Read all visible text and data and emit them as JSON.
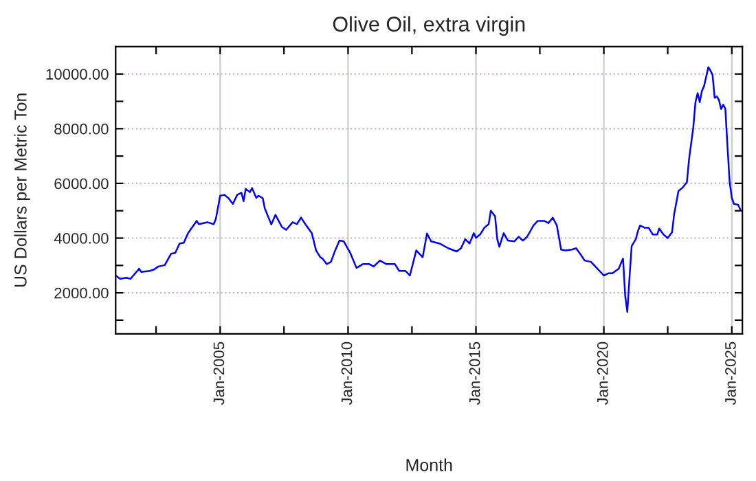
{
  "chart_data": {
    "type": "line",
    "title": "Olive Oil, extra virgin",
    "xlabel": "Month",
    "ylabel": "US Dollars per Metric Ton",
    "x": [
      "2000-12",
      "2001-02",
      "2001-05",
      "2001-07",
      "2001-11",
      "2001-12",
      "2002-04",
      "2002-06",
      "2002-08",
      "2002-11",
      "2003-02",
      "2003-04",
      "2003-06",
      "2003-08",
      "2003-10",
      "2004-02",
      "2004-03",
      "2004-07",
      "2004-10",
      "2004-11",
      "2005-01",
      "2005-03",
      "2005-05",
      "2005-07",
      "2005-09",
      "2005-11",
      "2005-12",
      "2006-01",
      "2006-03",
      "2006-04",
      "2006-06",
      "2006-07",
      "2006-09",
      "2006-10",
      "2007-01",
      "2007-03",
      "2007-06",
      "2007-08",
      "2007-11",
      "2008-01",
      "2008-03",
      "2008-05",
      "2008-08",
      "2008-10",
      "2008-12",
      "2009-01",
      "2009-03",
      "2009-05",
      "2009-07",
      "2009-09",
      "2009-11",
      "2010-02",
      "2010-05",
      "2010-08",
      "2010-11",
      "2011-01",
      "2011-04",
      "2011-07",
      "2011-11",
      "2012-01",
      "2012-04",
      "2012-06",
      "2012-09",
      "2012-12",
      "2013-02",
      "2013-04",
      "2013-08",
      "2013-12",
      "2014-04",
      "2014-06",
      "2014-08",
      "2014-10",
      "2014-12",
      "2015-01",
      "2015-03",
      "2015-05",
      "2015-07",
      "2015-08",
      "2015-10",
      "2015-11",
      "2015-12",
      "2016-02",
      "2016-04",
      "2016-07",
      "2016-09",
      "2016-11",
      "2017-01",
      "2017-04",
      "2017-06",
      "2017-09",
      "2017-11",
      "2018-01",
      "2018-03",
      "2018-05",
      "2018-07",
      "2018-10",
      "2018-12",
      "2019-02",
      "2019-04",
      "2019-07",
      "2019-09",
      "2019-11",
      "2020-01",
      "2020-03",
      "2020-05",
      "2020-08",
      "2020-09",
      "2020-10",
      "2020-11",
      "2020-12",
      "2021-01",
      "2021-02",
      "2021-04",
      "2021-05",
      "2021-06",
      "2021-08",
      "2021-10",
      "2021-12",
      "2022-02",
      "2022-03",
      "2022-05",
      "2022-07",
      "2022-09",
      "2022-10",
      "2022-12",
      "2023-02",
      "2023-04",
      "2023-05",
      "2023-07",
      "2023-08",
      "2023-09",
      "2023-10",
      "2023-11",
      "2023-12",
      "2024-02",
      "2024-03",
      "2024-04",
      "2024-05",
      "2024-06",
      "2024-07",
      "2024-08",
      "2024-09",
      "2024-10",
      "2024-11",
      "2024-12",
      "2025-01",
      "2025-02",
      "2025-04",
      "2025-05"
    ],
    "series": [
      {
        "color": "#0000ff",
        "values": [
          2630,
          2510,
          2550,
          2510,
          2880,
          2760,
          2800,
          2850,
          2960,
          3010,
          3430,
          3460,
          3800,
          3830,
          4180,
          4630,
          4510,
          4580,
          4510,
          4710,
          5550,
          5580,
          5460,
          5250,
          5580,
          5660,
          5350,
          5800,
          5680,
          5830,
          5470,
          5550,
          5460,
          5080,
          4500,
          4850,
          4410,
          4300,
          4580,
          4510,
          4750,
          4510,
          4180,
          3550,
          3300,
          3250,
          3050,
          3130,
          3550,
          3910,
          3880,
          3460,
          2910,
          3050,
          3050,
          2960,
          3180,
          3050,
          3050,
          2800,
          2800,
          2630,
          3550,
          3300,
          4170,
          3880,
          3800,
          3630,
          3510,
          3630,
          3960,
          3800,
          4180,
          4010,
          4130,
          4380,
          4510,
          5000,
          4800,
          3960,
          3680,
          4180,
          3910,
          3880,
          4050,
          3910,
          4050,
          4460,
          4630,
          4630,
          4550,
          4750,
          4460,
          3580,
          3550,
          3580,
          3630,
          3410,
          3180,
          3130,
          2960,
          2800,
          2630,
          2710,
          2710,
          2880,
          3080,
          3250,
          1880,
          1300,
          2550,
          3710,
          3960,
          4250,
          4460,
          4380,
          4380,
          4130,
          4130,
          4350,
          4130,
          4000,
          4220,
          4880,
          5720,
          5850,
          6050,
          6880,
          8050,
          8970,
          9300,
          8970,
          9380,
          9550,
          10250,
          10130,
          9970,
          9130,
          9180,
          9050,
          8720,
          8880,
          8720,
          7300,
          6050,
          5470,
          5250,
          5220,
          5050
        ]
      }
    ],
    "xlim": [
      "2000-12",
      "2025-06"
    ],
    "xticks": [
      {
        "value": "2002-07",
        "label": null
      },
      {
        "value": "2005-01",
        "label": "Jan-2005"
      },
      {
        "value": "2007-07",
        "label": null
      },
      {
        "value": "2010-01",
        "label": "Jan-2010"
      },
      {
        "value": "2012-07",
        "label": null
      },
      {
        "value": "2015-01",
        "label": "Jan-2015"
      },
      {
        "value": "2017-07",
        "label": null
      },
      {
        "value": "2020-01",
        "label": "Jan-2020"
      },
      {
        "value": "2022-07",
        "label": null
      },
      {
        "value": "2025-01",
        "label": "Jan-2025"
      }
    ],
    "ylim": [
      500,
      11000
    ],
    "yticks": [
      {
        "value": 1000,
        "label": null
      },
      {
        "value": 2000,
        "label": "2000.00"
      },
      {
        "value": 3000,
        "label": null
      },
      {
        "value": 4000,
        "label": "4000.00"
      },
      {
        "value": 5000,
        "label": null
      },
      {
        "value": 6000,
        "label": "6000.00"
      },
      {
        "value": 7000,
        "label": null
      },
      {
        "value": 8000,
        "label": "8000.00"
      },
      {
        "value": 9000,
        "label": null
      },
      {
        "value": 10000,
        "label": "10000.00"
      }
    ],
    "grid": true,
    "line_style": "solid",
    "marker": "none"
  }
}
